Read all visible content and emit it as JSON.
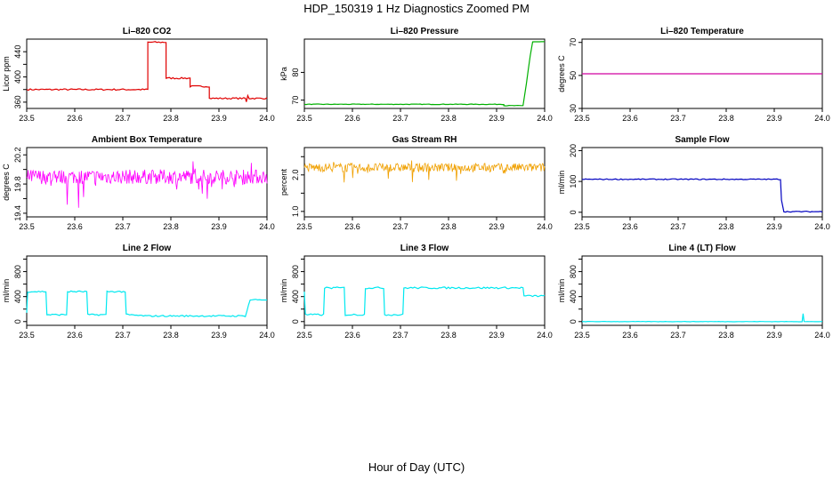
{
  "page": {
    "title": "HDP_150319  1 Hz Diagnostics Zoomed PM",
    "footer": "Hour of Day (UTC)"
  },
  "chart_data": [
    {
      "type": "line",
      "title": "Li–820 CO2",
      "ylabel": "Licor ppm",
      "color": "#e00000",
      "xlim": [
        23.5,
        24.0
      ],
      "ylim": [
        350,
        460
      ],
      "xticks": [
        "23.5",
        "23.6",
        "23.7",
        "23.8",
        "23.9",
        "24.0"
      ],
      "yticks": [
        360,
        380,
        400,
        420,
        440
      ],
      "ytick_labels": [
        "360",
        "",
        "400",
        "",
        "440"
      ],
      "points": [
        [
          23.5,
          380
        ],
        [
          23.752,
          380
        ],
        [
          23.752,
          455
        ],
        [
          23.79,
          455
        ],
        [
          23.79,
          398
        ],
        [
          23.84,
          398
        ],
        [
          23.84,
          385
        ],
        [
          23.88,
          385
        ],
        [
          23.88,
          366
        ],
        [
          23.955,
          366
        ],
        [
          23.957,
          360
        ],
        [
          23.96,
          371
        ],
        [
          23.963,
          366
        ],
        [
          24.0,
          366
        ]
      ],
      "noise": 1.2
    },
    {
      "type": "line",
      "title": "Li–820 Pressure",
      "ylabel": "kPa",
      "color": "#00b000",
      "xlim": [
        23.5,
        24.0
      ],
      "ylim": [
        67,
        92
      ],
      "xticks": [
        "23.5",
        "23.6",
        "23.7",
        "23.8",
        "23.9",
        "24.0"
      ],
      "yticks": [
        70,
        80
      ],
      "ytick_labels": [
        "70",
        "80"
      ],
      "points": [
        [
          23.5,
          68.5
        ],
        [
          23.915,
          68.5
        ],
        [
          23.915,
          68
        ],
        [
          23.955,
          68
        ],
        [
          23.962,
          76
        ],
        [
          23.97,
          86
        ],
        [
          23.975,
          91
        ],
        [
          24.0,
          91
        ]
      ],
      "noise": 0.1
    },
    {
      "type": "line",
      "title": "Li–820 Temperature",
      "ylabel": "degrees C",
      "color": "#d000a0",
      "xlim": [
        23.5,
        24.0
      ],
      "ylim": [
        30,
        72
      ],
      "xticks": [
        "23.5",
        "23.6",
        "23.7",
        "23.8",
        "23.9",
        "24.0"
      ],
      "yticks": [
        30,
        50,
        70
      ],
      "ytick_labels": [
        "30",
        "50",
        "70"
      ],
      "points": [
        [
          23.5,
          51
        ],
        [
          24.0,
          51
        ]
      ],
      "noise": 0
    },
    {
      "type": "line",
      "title": "Ambient Box Temperature",
      "ylabel": "degrees C",
      "color": "#ff00ff",
      "xlim": [
        23.5,
        24.0
      ],
      "ylim": [
        19.35,
        20.3
      ],
      "xticks": [
        "23.5",
        "23.6",
        "23.7",
        "23.8",
        "23.9",
        "24.0"
      ],
      "yticks": [
        19.4,
        19.6,
        19.8,
        20.0,
        20.2
      ],
      "ytick_labels": [
        "19.4",
        "",
        "19.8",
        "",
        "20.2"
      ],
      "points": [
        [
          23.5,
          19.9
        ],
        [
          24.0,
          19.9
        ]
      ],
      "noise": 0.1,
      "dense": true
    },
    {
      "type": "line",
      "title": "Gas Stream RH",
      "ylabel": "percent",
      "color": "#f0a000",
      "xlim": [
        23.5,
        24.0
      ],
      "ylim": [
        0.85,
        2.75
      ],
      "xticks": [
        "23.5",
        "23.6",
        "23.7",
        "23.8",
        "23.9",
        "24.0"
      ],
      "yticks": [
        1.0,
        1.5,
        2.0,
        2.5
      ],
      "ytick_labels": [
        "1.0",
        "",
        "2.0",
        ""
      ],
      "points": [
        [
          23.5,
          2.2
        ],
        [
          24.0,
          2.2
        ]
      ],
      "noise": 0.12,
      "dense": true
    },
    {
      "type": "line",
      "title": "Sample Flow",
      "ylabel": "ml/min",
      "color": "#0000c0",
      "xlim": [
        23.5,
        24.0
      ],
      "ylim": [
        -15,
        210
      ],
      "xticks": [
        "23.5",
        "23.6",
        "23.7",
        "23.8",
        "23.9",
        "24.0"
      ],
      "yticks": [
        0,
        100,
        200
      ],
      "ytick_labels": [
        "0",
        "100",
        "200"
      ],
      "points": [
        [
          23.5,
          107
        ],
        [
          23.913,
          107
        ],
        [
          23.915,
          40
        ],
        [
          23.92,
          2
        ],
        [
          24.0,
          2
        ]
      ],
      "noise": 1.5
    },
    {
      "type": "line",
      "title": "Line 2 Flow",
      "ylabel": "ml/min",
      "color": "#00e8f0",
      "xlim": [
        23.5,
        24.0
      ],
      "ylim": [
        -60,
        1050
      ],
      "xticks": [
        "23.5",
        "23.6",
        "23.7",
        "23.8",
        "23.9",
        "24.0"
      ],
      "yticks": [
        0,
        200,
        400,
        600,
        800,
        1000
      ],
      "ytick_labels": [
        "0",
        "",
        "400",
        "",
        "800",
        ""
      ],
      "points": [
        [
          23.5,
          140
        ],
        [
          23.502,
          480
        ],
        [
          23.54,
          480
        ],
        [
          23.542,
          110
        ],
        [
          23.583,
          110
        ],
        [
          23.585,
          480
        ],
        [
          23.625,
          480
        ],
        [
          23.627,
          110
        ],
        [
          23.665,
          110
        ],
        [
          23.667,
          480
        ],
        [
          23.705,
          480
        ],
        [
          23.707,
          110
        ],
        [
          23.75,
          90
        ],
        [
          23.955,
          90
        ],
        [
          23.965,
          350
        ],
        [
          24.0,
          350
        ]
      ],
      "noise": 12
    },
    {
      "type": "line",
      "title": "Line 3 Flow",
      "ylabel": "ml/min",
      "color": "#00e8f0",
      "xlim": [
        23.5,
        24.0
      ],
      "ylim": [
        -60,
        1050
      ],
      "xticks": [
        "23.5",
        "23.6",
        "23.7",
        "23.8",
        "23.9",
        "24.0"
      ],
      "yticks": [
        0,
        200,
        400,
        600,
        800,
        1000
      ],
      "ytick_labels": [
        "0",
        "",
        "400",
        "",
        "800",
        ""
      ],
      "points": [
        [
          23.5,
          480
        ],
        [
          23.502,
          110
        ],
        [
          23.54,
          110
        ],
        [
          23.542,
          540
        ],
        [
          23.583,
          540
        ],
        [
          23.585,
          110
        ],
        [
          23.625,
          110
        ],
        [
          23.627,
          540
        ],
        [
          23.665,
          540
        ],
        [
          23.667,
          110
        ],
        [
          23.705,
          110
        ],
        [
          23.707,
          540
        ],
        [
          23.955,
          540
        ],
        [
          23.957,
          410
        ],
        [
          24.0,
          410
        ]
      ],
      "noise": 14
    },
    {
      "type": "line",
      "title": "Line 4 (LT) Flow",
      "ylabel": "ml/min",
      "color": "#00e8f0",
      "xlim": [
        23.5,
        24.0
      ],
      "ylim": [
        -60,
        1050
      ],
      "xticks": [
        "23.5",
        "23.6",
        "23.7",
        "23.8",
        "23.9",
        "24.0"
      ],
      "yticks": [
        0,
        200,
        400,
        600,
        800,
        1000
      ],
      "ytick_labels": [
        "0",
        "",
        "400",
        "",
        "800",
        ""
      ],
      "points": [
        [
          23.5,
          0
        ],
        [
          23.958,
          0
        ],
        [
          23.96,
          130
        ],
        [
          23.962,
          0
        ],
        [
          24.0,
          0
        ]
      ],
      "noise": 3
    }
  ]
}
